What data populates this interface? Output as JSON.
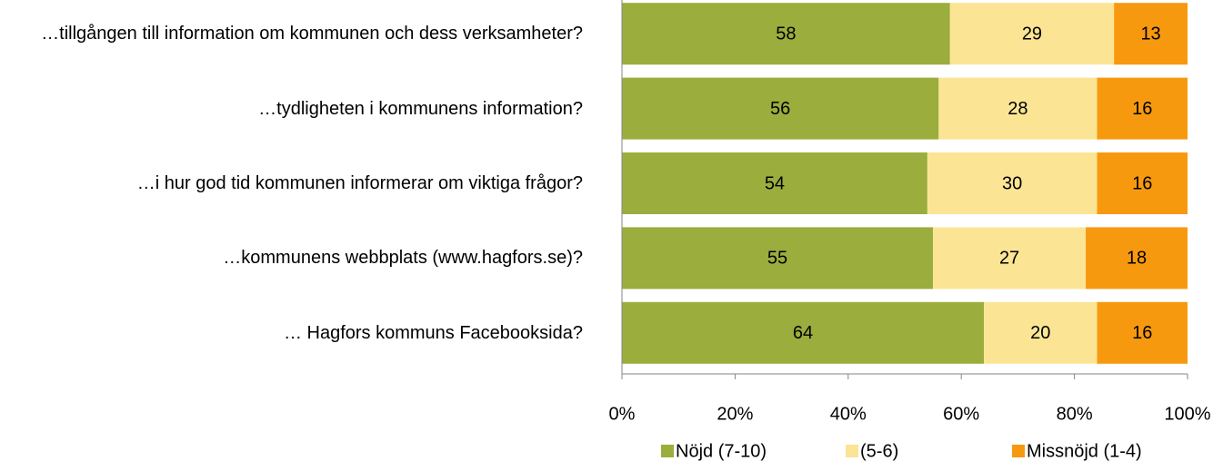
{
  "chart_data": {
    "type": "bar",
    "orientation": "horizontal",
    "stacked": true,
    "categories": [
      "…tillgången till information om kommunen och dess verksamheter?",
      "…tydligheten i kommunens information?",
      "…i hur god tid kommunen informerar om viktiga frågor?",
      "…kommunens webbplats (www.hagfors.se)?",
      "… Hagfors kommuns Facebooksida?"
    ],
    "series": [
      {
        "name": "Nöjd (7-10)",
        "color": "#9bad3d",
        "values": [
          58,
          56,
          54,
          55,
          64
        ]
      },
      {
        "name": "(5-6)",
        "color": "#fbe594",
        "values": [
          29,
          28,
          30,
          27,
          20
        ]
      },
      {
        "name": "Missnöjd (1-4)",
        "color": "#f7990f",
        "values": [
          13,
          16,
          16,
          18,
          16
        ]
      }
    ],
    "xlim": [
      0,
      100
    ],
    "xticks": [
      {
        "value": 0,
        "label": "0%"
      },
      {
        "value": 20,
        "label": "20%"
      },
      {
        "value": 40,
        "label": "40%"
      },
      {
        "value": 60,
        "label": "60%"
      },
      {
        "value": 80,
        "label": "80%"
      },
      {
        "value": 100,
        "label": "100%"
      }
    ],
    "legend": "bottom"
  }
}
